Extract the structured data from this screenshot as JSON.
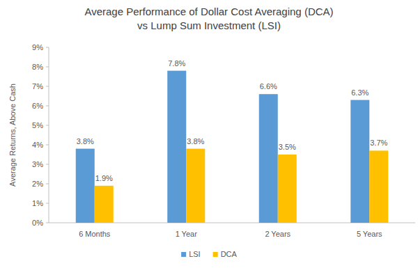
{
  "chart_data": {
    "type": "bar",
    "title": "Average Performance of Dollar Cost Averaging (DCA)\nvs Lump Sum Investment (LSI)",
    "ylabel": "Average Returns, Above Cash",
    "categories": [
      "6 Months",
      "1 Year",
      "2 Years",
      "5 Years"
    ],
    "series": [
      {
        "name": "LSI",
        "color": "#5b9bd5",
        "values": [
          3.8,
          7.8,
          6.6,
          6.3
        ],
        "value_labels": [
          "3.8%",
          "7.8%",
          "6.6%",
          "6.3%"
        ]
      },
      {
        "name": "DCA",
        "color": "#ffc000",
        "values": [
          1.9,
          3.8,
          3.5,
          3.7
        ],
        "value_labels": [
          "1.9%",
          "3.8%",
          "3.5%",
          "3.7%"
        ]
      }
    ],
    "ylim": [
      0,
      9
    ],
    "yticks": [
      {
        "value": 0,
        "label": "0%"
      },
      {
        "value": 1,
        "label": "1%"
      },
      {
        "value": 2,
        "label": "2%"
      },
      {
        "value": 3,
        "label": "3%"
      },
      {
        "value": 4,
        "label": "4%"
      },
      {
        "value": 5,
        "label": "5%"
      },
      {
        "value": 6,
        "label": "6%"
      },
      {
        "value": 7,
        "label": "7%"
      },
      {
        "value": 8,
        "label": "8%"
      },
      {
        "value": 9,
        "label": "9%"
      }
    ],
    "grid": false,
    "legend": "bottom",
    "data_labels": true
  }
}
